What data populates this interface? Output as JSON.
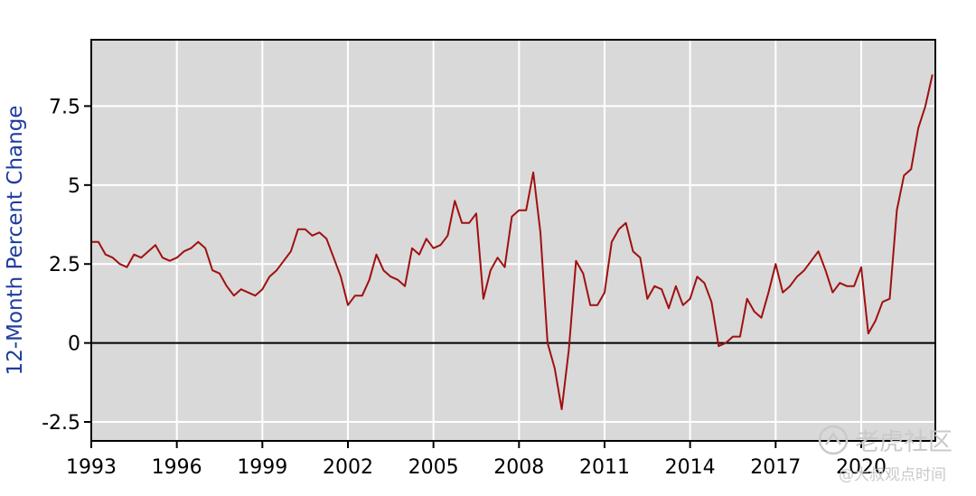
{
  "chart_data": {
    "type": "line",
    "title": "",
    "xlabel": "",
    "ylabel": "12-Month Percent Change",
    "xlim": [
      1993,
      2022.6
    ],
    "ylim": [
      -3.1,
      9.6
    ],
    "x_ticks": [
      1993,
      1996,
      1999,
      2002,
      2005,
      2008,
      2011,
      2014,
      2017,
      2020
    ],
    "x_tick_labels": [
      "1993",
      "1996",
      "1999",
      "2002",
      "2005",
      "2008",
      "2011",
      "2014",
      "2017",
      "2020"
    ],
    "y_ticks": [
      -2.5,
      0,
      2.5,
      5,
      7.5
    ],
    "y_tick_labels": [
      "-2.5",
      "0",
      "2.5",
      "5",
      "7.5"
    ],
    "grid": true,
    "zero_line": true,
    "colors": {
      "line": "#a01010",
      "plot_bg": "#d9d9d9",
      "grid": "#ffffff",
      "ylabel": "#1f3c9e",
      "axis": "#000000"
    },
    "series": [
      {
        "name": "",
        "x": [
          1993.0,
          1993.25,
          1993.5,
          1993.75,
          1994.0,
          1994.25,
          1994.5,
          1994.75,
          1995.0,
          1995.25,
          1995.5,
          1995.75,
          1996.0,
          1996.25,
          1996.5,
          1996.75,
          1997.0,
          1997.25,
          1997.5,
          1997.75,
          1998.0,
          1998.25,
          1998.5,
          1998.75,
          1999.0,
          1999.25,
          1999.5,
          1999.75,
          2000.0,
          2000.25,
          2000.5,
          2000.75,
          2001.0,
          2001.25,
          2001.5,
          2001.75,
          2002.0,
          2002.25,
          2002.5,
          2002.75,
          2003.0,
          2003.25,
          2003.5,
          2003.75,
          2004.0,
          2004.25,
          2004.5,
          2004.75,
          2005.0,
          2005.25,
          2005.5,
          2005.75,
          2006.0,
          2006.25,
          2006.5,
          2006.75,
          2007.0,
          2007.25,
          2007.5,
          2007.75,
          2008.0,
          2008.25,
          2008.5,
          2008.75,
          2009.0,
          2009.25,
          2009.5,
          2009.75,
          2010.0,
          2010.25,
          2010.5,
          2010.75,
          2011.0,
          2011.25,
          2011.5,
          2011.75,
          2012.0,
          2012.25,
          2012.5,
          2012.75,
          2013.0,
          2013.25,
          2013.5,
          2013.75,
          2014.0,
          2014.25,
          2014.5,
          2014.75,
          2015.0,
          2015.25,
          2015.5,
          2015.75,
          2016.0,
          2016.25,
          2016.5,
          2016.75,
          2017.0,
          2017.25,
          2017.5,
          2017.75,
          2018.0,
          2018.25,
          2018.5,
          2018.75,
          2019.0,
          2019.25,
          2019.5,
          2019.75,
          2020.0,
          2020.25,
          2020.5,
          2020.75,
          2021.0,
          2021.25,
          2021.5,
          2021.75,
          2022.0,
          2022.25,
          2022.5
        ],
        "y": [
          3.2,
          3.2,
          2.8,
          2.7,
          2.5,
          2.4,
          2.8,
          2.7,
          2.9,
          3.1,
          2.7,
          2.6,
          2.7,
          2.9,
          3.0,
          3.2,
          3.0,
          2.3,
          2.2,
          1.8,
          1.5,
          1.7,
          1.6,
          1.5,
          1.7,
          2.1,
          2.3,
          2.6,
          2.9,
          3.6,
          3.6,
          3.4,
          3.5,
          3.3,
          2.7,
          2.1,
          1.2,
          1.5,
          1.5,
          2.0,
          2.8,
          2.3,
          2.1,
          2.0,
          1.8,
          3.0,
          2.8,
          3.3,
          3.0,
          3.1,
          3.4,
          4.5,
          3.8,
          3.8,
          4.1,
          1.4,
          2.3,
          2.7,
          2.4,
          4.0,
          4.2,
          4.2,
          5.4,
          3.5,
          0.0,
          -0.8,
          -2.1,
          -0.2,
          2.6,
          2.2,
          1.2,
          1.2,
          1.6,
          3.2,
          3.6,
          3.8,
          2.9,
          2.7,
          1.4,
          1.8,
          1.7,
          1.1,
          1.8,
          1.2,
          1.4,
          2.1,
          1.9,
          1.3,
          -0.1,
          0.0,
          0.2,
          0.2,
          1.4,
          1.0,
          0.8,
          1.6,
          2.5,
          1.6,
          1.8,
          2.1,
          2.3,
          2.6,
          2.9,
          2.3,
          1.6,
          1.9,
          1.8,
          1.8,
          2.4,
          0.3,
          0.7,
          1.3,
          1.4,
          4.2,
          5.3,
          5.5,
          6.8,
          7.5,
          8.5
        ]
      }
    ]
  },
  "watermark": {
    "brand": "老虎社区",
    "handle": "@大叔观点时间"
  }
}
